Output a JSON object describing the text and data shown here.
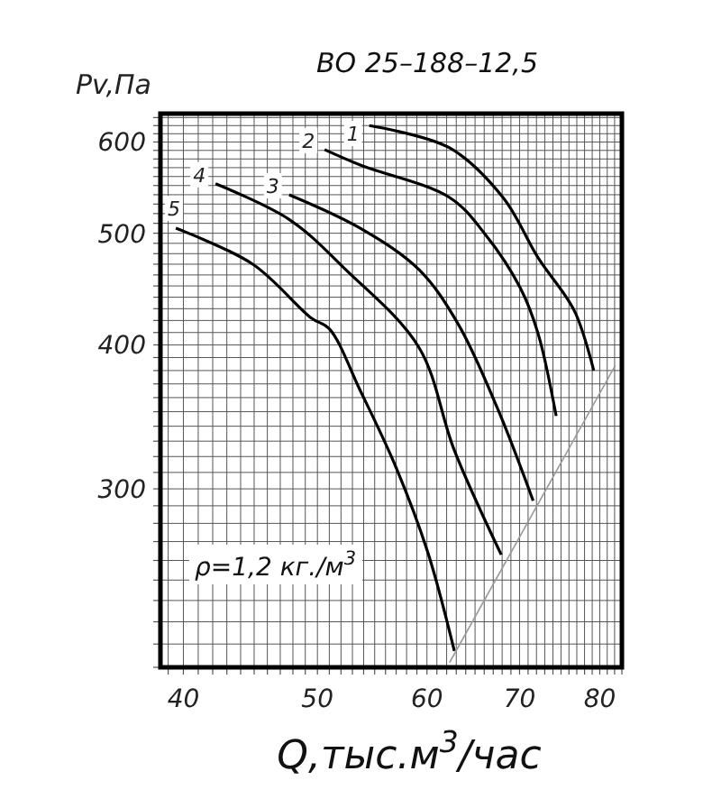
{
  "chart_data": {
    "type": "line",
    "title": "ВО 25–188–12,5",
    "xlabel": "Q,тыс.м$^{3}$/час",
    "ylabel": "Pv,Па",
    "log": "xy",
    "grid": true,
    "legend": false,
    "marker": "none",
    "line_style": "solid",
    "xlim": [
      38.5,
      83
    ],
    "xticks": [
      40,
      50,
      60,
      70,
      80
    ],
    "ylim": [
      210,
      635
    ],
    "yticks": [
      300,
      400,
      500,
      600
    ],
    "annotations": [
      "ρ=1,2 кг./м$^{3}$"
    ],
    "series": [
      {
        "name": "1",
        "color": "#000000",
        "x": [
          54.5,
          62.3,
          68.1,
          72.2,
          76.7,
          79.2
        ],
        "values": [
          620,
          593,
          537,
          476,
          428,
          380
        ]
      },
      {
        "name": "2",
        "color": "#000000",
        "x": [
          50.6,
          53.7,
          62.3,
          66.1,
          70.1,
          72.2,
          74.4
        ],
        "values": [
          591,
          573,
          537,
          499,
          448,
          409,
          347
        ]
      },
      {
        "name": "3",
        "color": "#000000",
        "x": [
          47.7,
          53.7,
          59.2,
          63.2,
          67.5,
          71.6
        ],
        "values": [
          540,
          505,
          465,
          417,
          352,
          293
        ]
      },
      {
        "name": "4",
        "color": "#000000",
        "x": [
          42.2,
          47.7,
          52.4,
          59.2,
          62.8,
          67.9
        ],
        "values": [
          552,
          514,
          465,
          398,
          324,
          263
        ]
      },
      {
        "name": "5",
        "color": "#000000",
        "x": [
          39.5,
          44.9,
          49.5,
          51.0,
          53.7,
          57.0,
          60.1,
          62.8
        ],
        "values": [
          505,
          470,
          422,
          413,
          365,
          313,
          264,
          217
        ]
      },
      {
        "color": "#9a9a9a",
        "x": [
          62.3,
          82.1
        ],
        "values": [
          212,
          384
        ]
      }
    ]
  }
}
